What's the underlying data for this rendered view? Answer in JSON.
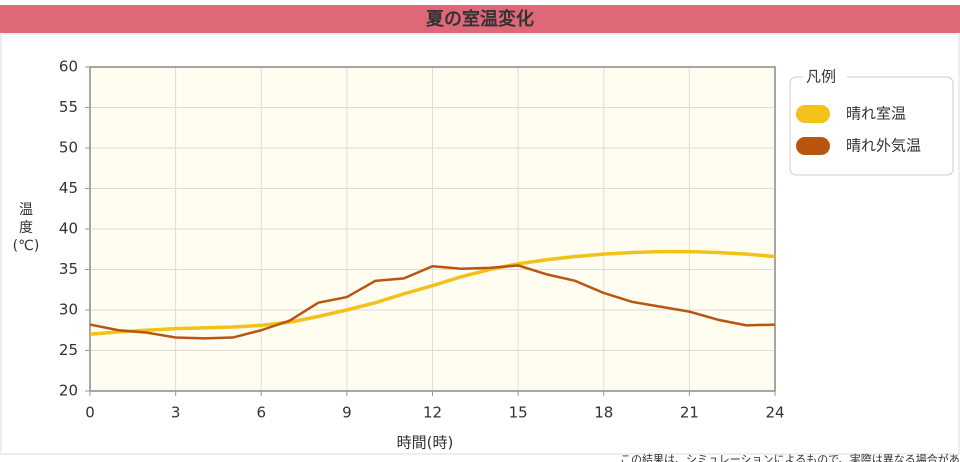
{
  "chart_data": {
    "type": "line",
    "title": "夏の室温変化",
    "xlabel": "時間(時)",
    "ylabel": "温度(℃)",
    "x": [
      0,
      1,
      2,
      3,
      4,
      5,
      6,
      7,
      8,
      9,
      10,
      11,
      12,
      13,
      14,
      15,
      16,
      17,
      18,
      19,
      20,
      21,
      22,
      23,
      24
    ],
    "series": [
      {
        "name": "晴れ室温",
        "color": "#f2c21b",
        "values": [
          27.0,
          27.3,
          27.5,
          27.7,
          27.8,
          27.9,
          28.1,
          28.5,
          29.2,
          30.0,
          30.9,
          32.0,
          33.0,
          34.1,
          35.0,
          35.7,
          36.2,
          36.6,
          36.9,
          37.1,
          37.2,
          37.2,
          37.1,
          36.9,
          36.6
        ]
      },
      {
        "name": "晴れ外気温",
        "color": "#b8560f",
        "values": [
          28.2,
          27.5,
          27.2,
          26.6,
          26.5,
          26.6,
          27.5,
          28.7,
          30.9,
          31.6,
          33.6,
          33.9,
          35.4,
          35.1,
          35.2,
          35.5,
          34.4,
          33.6,
          32.1,
          31.0,
          30.4,
          29.8,
          28.8,
          28.1,
          28.2
        ]
      }
    ],
    "xlim": [
      0,
      24
    ],
    "xticks": [
      0,
      3,
      6,
      9,
      12,
      15,
      18,
      21,
      24
    ],
    "ylim": [
      20,
      60
    ],
    "yticks": [
      20,
      25,
      30,
      35,
      40,
      45,
      50,
      55,
      60
    ],
    "grid": true,
    "legend_title": "凡例",
    "legend_position": "right",
    "footnote": "この結果は、シミュレーションによるもので、実際は異なる場合があります"
  }
}
